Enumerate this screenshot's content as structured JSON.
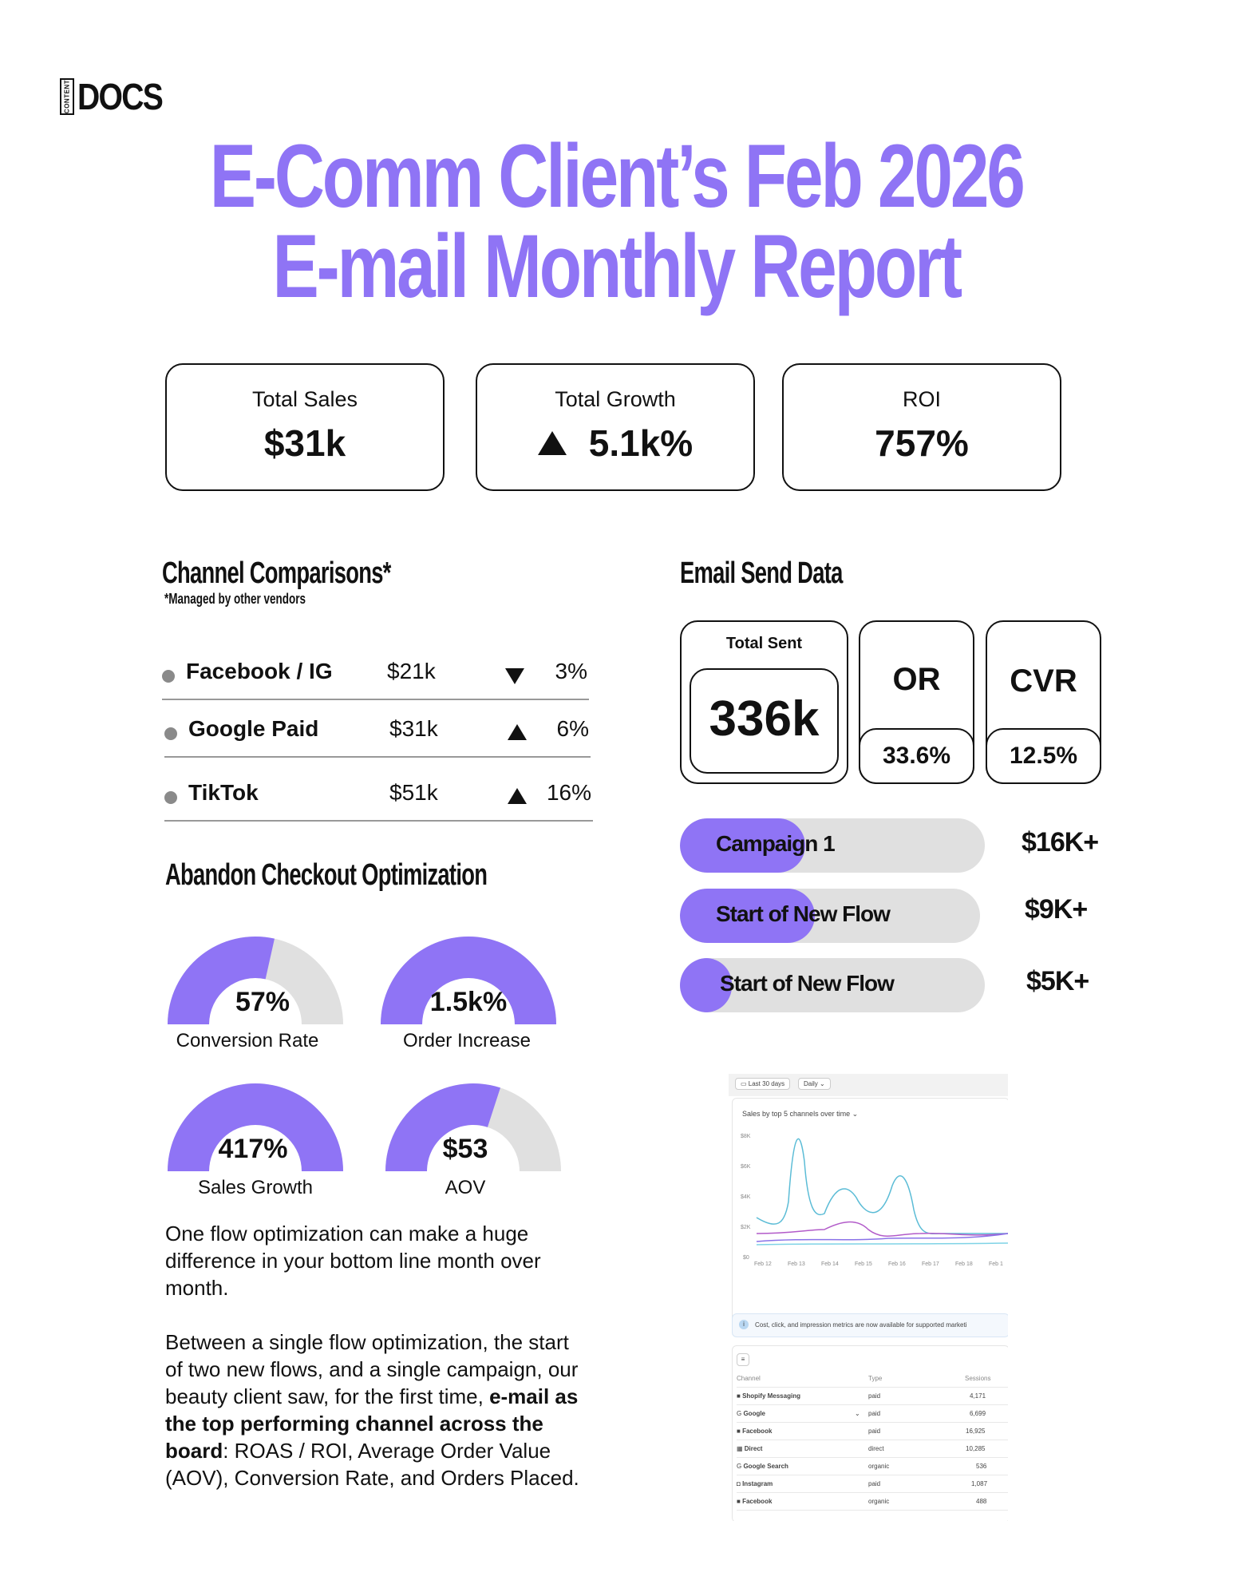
{
  "logo": {
    "small": "CONTENT",
    "word": "DOCS"
  },
  "title": {
    "line1": "E-Comm Client’s Feb 2026",
    "line2": "E-mail Monthly Report"
  },
  "kpis": [
    {
      "label": "Total Sales",
      "value": "$31k"
    },
    {
      "label": "Total Growth",
      "value": "5.1k%",
      "trend": "up"
    },
    {
      "label": "ROI",
      "value": "757%"
    }
  ],
  "channels": {
    "heading": "Channel Comparisons*",
    "note": "*Managed by other vendors",
    "rows": [
      {
        "name": "Facebook / IG",
        "amount": "$21k",
        "trend": "down",
        "pct": "3%"
      },
      {
        "name": "Google Paid",
        "amount": "$31k",
        "trend": "up",
        "pct": "6%"
      },
      {
        "name": "TikTok",
        "amount": "$51k",
        "trend": "up",
        "pct": "16%"
      }
    ]
  },
  "abandon": {
    "heading": "Abandon Checkout Optimization",
    "gauges": [
      {
        "value": "57%",
        "label": "Conversion Rate",
        "fill": 0.57
      },
      {
        "value": "1.5k%",
        "label": "Order Increase",
        "fill": 1.0
      },
      {
        "value": "417%",
        "label": "Sales Growth",
        "fill": 1.0
      },
      {
        "value": "$53",
        "label": "AOV",
        "fill": 0.6
      }
    ],
    "para1": "One flow optimization can make a huge difference in your bottom line month over month.",
    "para2_pre": "Between a single flow optimization, the start of two new flows, and a single campaign, our beauty client saw, for the first time, ",
    "para2_bold": "e-mail as the top performing channel across the board",
    "para2_post": ": ROAS / ROI, Average Order Value (AOV), Conversion Rate, and Orders Placed."
  },
  "email": {
    "heading": "Email Send Data",
    "total_sent_label": "Total Sent",
    "total_sent": "336k",
    "or_label": "OR",
    "or_value": "33.6%",
    "cvr_label": "CVR",
    "cvr_value": "12.5%",
    "campaigns": [
      {
        "label": "Campaign 1",
        "amount": "$16K+",
        "fill": 0.41
      },
      {
        "label": "Start of New Flow",
        "amount": "$9K+",
        "fill": 0.45
      },
      {
        "label": "Start of New Flow",
        "amount": "$5K+",
        "fill": 0.17
      }
    ]
  },
  "dashboard": {
    "range": "Last 30 days",
    "interval": "Daily",
    "chart_title": "Sales by top 5 channels over time",
    "y_ticks": [
      "$8K",
      "$6K",
      "$4K",
      "$2K",
      "$0"
    ],
    "x_ticks": [
      "Feb 12",
      "Feb 13",
      "Feb 14",
      "Feb 15",
      "Feb 16",
      "Feb 17",
      "Feb 18",
      "Feb 1"
    ],
    "info": "Cost, click, and impression metrics are now available for supported marketi",
    "columns": [
      "Channel",
      "Type",
      "Sessions"
    ],
    "rows": [
      {
        "channel": "Shopify Messaging",
        "type": "paid",
        "sessions": "4,171"
      },
      {
        "channel": "Google",
        "type": "paid",
        "sessions": "6,699"
      },
      {
        "channel": "Facebook",
        "type": "paid",
        "sessions": "16,925"
      },
      {
        "channel": "Direct",
        "type": "direct",
        "sessions": "10,285"
      },
      {
        "channel": "Google Search",
        "type": "organic",
        "sessions": "536"
      },
      {
        "channel": "Instagram",
        "type": "paid",
        "sessions": "1,087"
      },
      {
        "channel": "Facebook",
        "type": "organic",
        "sessions": "488"
      }
    ]
  },
  "colors": {
    "accent": "#8f74f5",
    "track": "#e0e0e0"
  }
}
